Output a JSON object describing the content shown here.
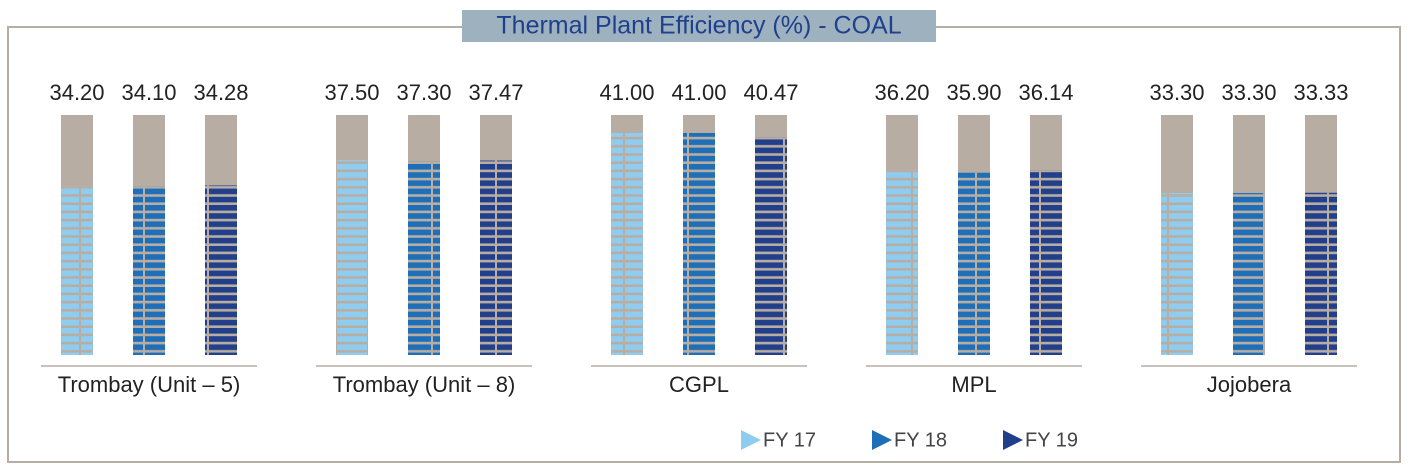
{
  "chart_data": {
    "type": "bar",
    "title": "Thermal Plant Efficiency (%) - COAL",
    "categories": [
      "Trombay (Unit – 5)",
      "Trombay (Unit – 8)",
      "CGPL",
      "MPL",
      "Jojobera"
    ],
    "series": [
      {
        "name": "FY 17",
        "color": "#8fcdf0",
        "values": [
          34.2,
          37.5,
          41,
          36.2,
          33.3
        ],
        "value_labels": [
          "34.20",
          "37.50",
          "41.00",
          "36.20",
          "33.30"
        ]
      },
      {
        "name": "FY 18",
        "color": "#1f6fb8",
        "values": [
          34.1,
          37.3,
          41,
          35.9,
          33.3
        ],
        "value_labels": [
          "34.10",
          "37.30",
          "41.00",
          "35.90",
          "33.30"
        ]
      },
      {
        "name": "FY 19",
        "color": "#223f8c",
        "values": [
          34.28,
          37.47,
          40.47,
          36.14,
          33.33
        ],
        "value_labels": [
          "34.28",
          "37.47",
          "40.47",
          "36.14",
          "33.33"
        ]
      }
    ]
  }
}
